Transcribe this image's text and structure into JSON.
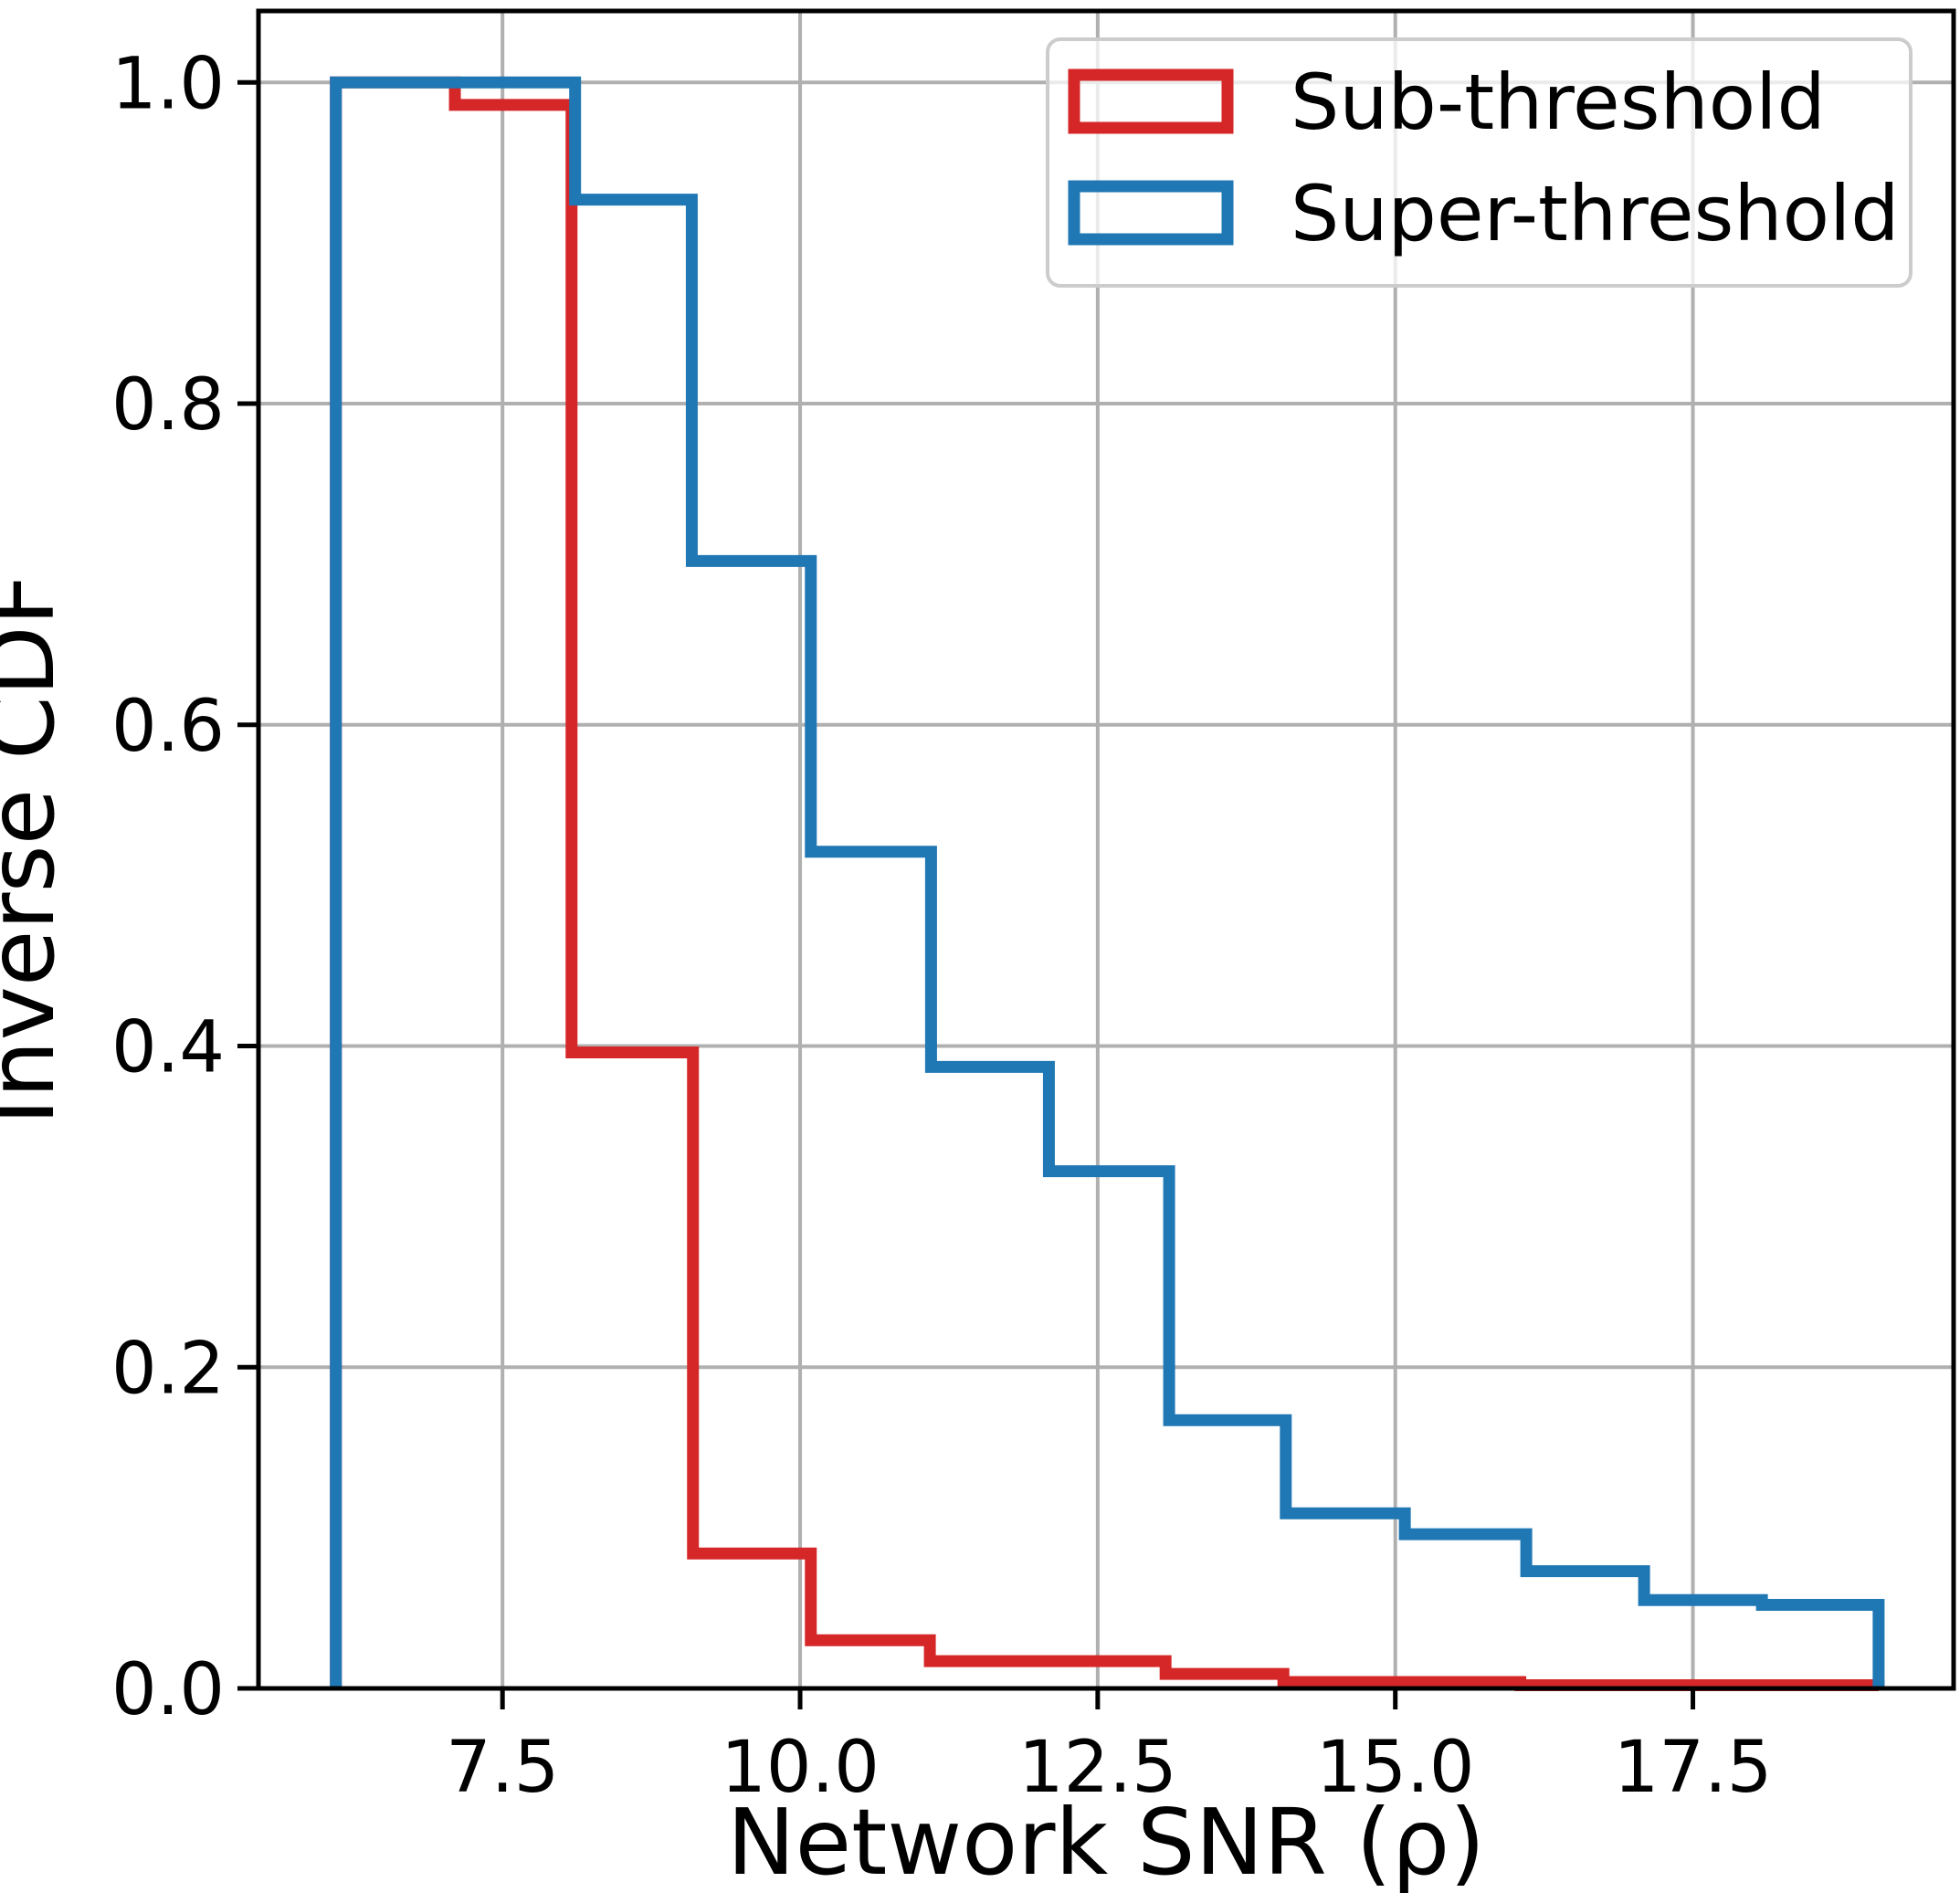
{
  "figure": {
    "background": "#ffffff",
    "grid_color": "#b0b0b0",
    "spine_color": "#000000"
  },
  "axes": {
    "xlabel": "Network SNR (ρ)",
    "ylabel": "Inverse CDF"
  },
  "legend": {
    "position": "upper-right",
    "items": [
      {
        "label": "Sub-threshold",
        "color": "#d62728"
      },
      {
        "label": "Super-threshold",
        "color": "#1f77b4"
      }
    ]
  },
  "chart_data": {
    "type": "line",
    "subtype": "step-survival",
    "title": "",
    "xlabel": "Network SNR (ρ)",
    "ylabel": "Inverse CDF",
    "xlim": [
      5.45,
      19.69
    ],
    "ylim": [
      0,
      1.0445
    ],
    "grid": true,
    "x_ticks": [
      7.5,
      10.0,
      12.5,
      15.0,
      17.5
    ],
    "x_tick_labels": [
      "7.5",
      "10.0",
      "12.5",
      "15.0",
      "17.5"
    ],
    "y_ticks": [
      0.0,
      0.2,
      0.4,
      0.6,
      0.8,
      1.0
    ],
    "y_tick_labels": [
      "0.0",
      "0.2",
      "0.4",
      "0.6",
      "0.8",
      "1.0"
    ],
    "series": [
      {
        "name": "Sub-threshold",
        "color": "#d62728",
        "edges": [
          6.1,
          7.1,
          8.08,
          9.1,
          10.09,
          11.09,
          13.07,
          14.06,
          16.05,
          19.06
        ],
        "values": [
          1.0,
          0.986,
          0.396,
          0.084,
          0.03,
          0.017,
          0.009,
          0.004,
          0.002
        ]
      },
      {
        "name": "Super-threshold",
        "color": "#1f77b4",
        "edges": [
          6.1,
          8.11,
          9.09,
          10.09,
          11.1,
          12.09,
          13.1,
          14.08,
          15.08,
          16.1,
          17.09,
          18.08,
          19.06
        ],
        "values": [
          1.0,
          0.927,
          0.702,
          0.521,
          0.387,
          0.322,
          0.167,
          0.109,
          0.096,
          0.073,
          0.055,
          0.052
        ]
      }
    ]
  }
}
